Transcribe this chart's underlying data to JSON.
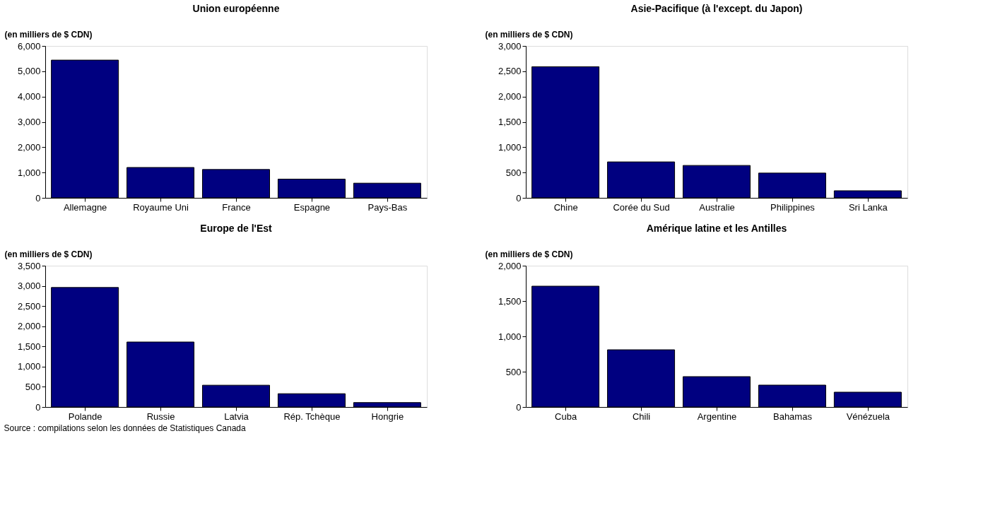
{
  "chart_data": [
    {
      "type": "bar",
      "title": "Union européenne",
      "ylabel": "(en milliers de $ CDN)",
      "categories": [
        "Allemagne",
        "Royaume Uni",
        "France",
        "Espagne",
        "Pays-Bas"
      ],
      "values": [
        5440,
        1200,
        1120,
        740,
        580
      ],
      "color": "#000080",
      "ylim": [
        0,
        6000
      ],
      "yticks": [
        0,
        {
          "value": 1000,
          "label": "1,000"
        },
        {
          "value": 2000,
          "label": "2,000"
        },
        {
          "value": 3000,
          "label": "3,000"
        },
        {
          "value": 4000,
          "label": "4,000"
        },
        {
          "value": 5000,
          "label": "5,000"
        },
        {
          "value": 6000,
          "label": "6,000"
        }
      ],
      "grid": false
    },
    {
      "type": "bar",
      "title": "Asie-Pacifique (à l'except. du Japon)",
      "ylabel": "(en milliers de $ CDN)",
      "categories": [
        "Chine",
        "Corée du Sud",
        "Australie",
        "Philippines",
        "Sri Lanka"
      ],
      "values": [
        2590,
        710,
        640,
        490,
        140
      ],
      "color": "#000080",
      "ylim": [
        0,
        3000
      ],
      "yticks": [
        0,
        500,
        {
          "value": 1000,
          "label": "1,000"
        },
        {
          "value": 1500,
          "label": "1,500"
        },
        {
          "value": 2000,
          "label": "2,000"
        },
        {
          "value": 2500,
          "label": "2,500"
        },
        {
          "value": 3000,
          "label": "3,000"
        }
      ],
      "grid": false
    },
    {
      "type": "bar",
      "title": "Europe de l'Est",
      "ylabel": "(en milliers de $ CDN)",
      "categories": [
        "Polande",
        "Russie",
        "Latvia",
        "Rép. Tchèque",
        "Hongrie"
      ],
      "values": [
        2960,
        1610,
        540,
        330,
        110
      ],
      "color": "#000080",
      "ylim": [
        0,
        3500
      ],
      "yticks": [
        0,
        500,
        {
          "value": 1000,
          "label": "1,000"
        },
        {
          "value": 1500,
          "label": "1,500"
        },
        {
          "value": 2000,
          "label": "2,000"
        },
        {
          "value": 2500,
          "label": "2,500"
        },
        {
          "value": 3000,
          "label": "3,000"
        },
        {
          "value": 3500,
          "label": "3,500"
        }
      ],
      "grid": false,
      "annotations": [
        "Source : compilations selon les données de Statistiques Canada"
      ]
    },
    {
      "type": "bar",
      "title": "Amérique latine et les Antilles",
      "ylabel": "(en milliers de $ CDN)",
      "categories": [
        "Cuba",
        "Chili",
        "Argentine",
        "Bahamas",
        "Vénézuela"
      ],
      "values": [
        1710,
        810,
        430,
        310,
        210
      ],
      "color": "#000080",
      "ylim": [
        0,
        2000
      ],
      "yticks": [
        0,
        500,
        {
          "value": 1000,
          "label": "1,000"
        },
        {
          "value": 1500,
          "label": "1,500"
        },
        {
          "value": 2000,
          "label": "2,000"
        }
      ],
      "grid": false
    }
  ]
}
